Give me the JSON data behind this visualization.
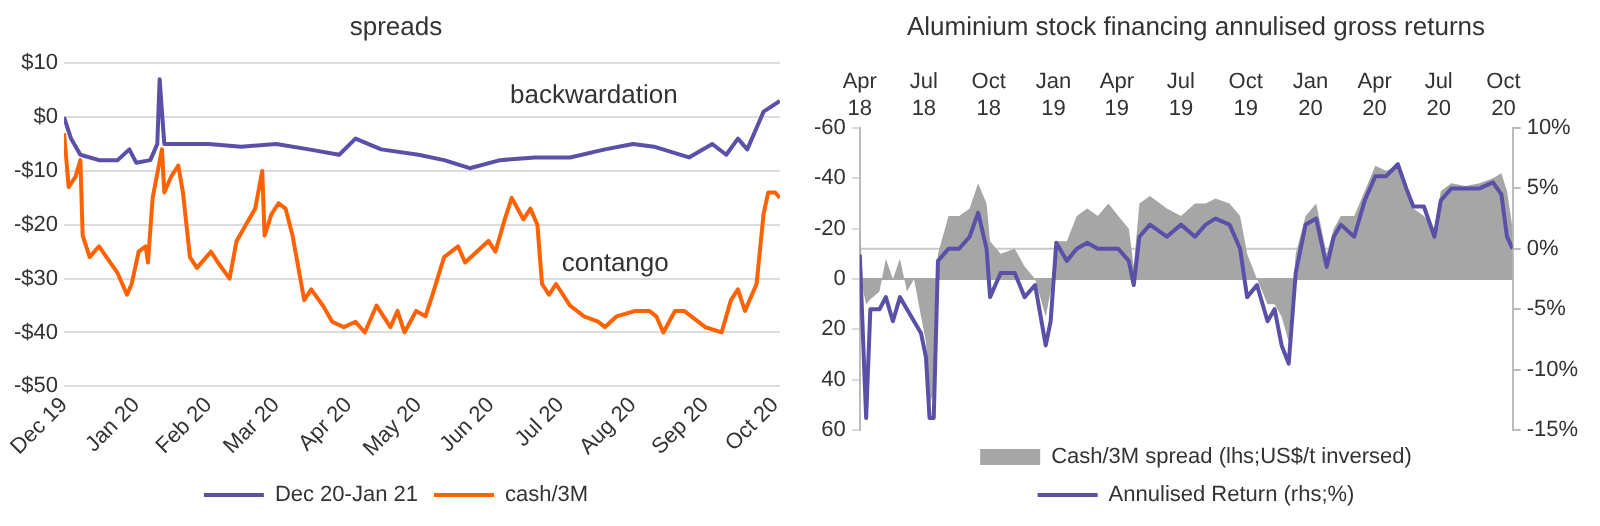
{
  "chart_data": [
    {
      "type": "line",
      "title": "spreads",
      "xlim": [
        "2019-12-01",
        "2020-10-03"
      ],
      "xticks": [
        {
          "value": "2019-12-01",
          "label": "Dec 19"
        },
        {
          "value": "2020-01-01",
          "label": "Jan 20"
        },
        {
          "value": "2020-02-01",
          "label": "Feb 20"
        },
        {
          "value": "2020-03-01",
          "label": "Mar 20"
        },
        {
          "value": "2020-04-01",
          "label": "Apr 20"
        },
        {
          "value": "2020-05-01",
          "label": "May 20"
        },
        {
          "value": "2020-06-01",
          "label": "Jun 20"
        },
        {
          "value": "2020-07-01",
          "label": "Jul 20"
        },
        {
          "value": "2020-08-01",
          "label": "Aug 20"
        },
        {
          "value": "2020-09-01",
          "label": "Sep 20"
        },
        {
          "value": "2020-10-01",
          "label": "Oct 20"
        }
      ],
      "ylim": [
        -50,
        10
      ],
      "yticks": [
        {
          "value": -50,
          "label": "-$50"
        },
        {
          "value": -40,
          "label": "-$40"
        },
        {
          "value": -30,
          "label": "-$30"
        },
        {
          "value": -20,
          "label": "-$20"
        },
        {
          "value": -10,
          "label": "-$10"
        },
        {
          "value": 0,
          "label": "$0"
        },
        {
          "value": 10,
          "label": "$10"
        }
      ],
      "grid": "y",
      "legend": "bottom",
      "marker": "none",
      "line_style": "solid",
      "annotations": [
        "backwardation",
        "contango"
      ],
      "series": [
        {
          "name": "Dec 20-Jan 21",
          "color": "#5a50a8",
          "x": [
            "2019-12-01",
            "2019-12-04",
            "2019-12-08",
            "2019-12-16",
            "2019-12-24",
            "2019-12-29",
            "2020-01-01",
            "2020-01-07",
            "2020-01-10",
            "2020-01-11",
            "2020-01-13",
            "2020-02-01",
            "2020-02-15",
            "2020-03-01",
            "2020-03-15",
            "2020-03-28",
            "2020-04-04",
            "2020-04-15",
            "2020-05-01",
            "2020-05-12",
            "2020-05-23",
            "2020-06-05",
            "2020-06-20",
            "2020-07-05",
            "2020-07-20",
            "2020-08-01",
            "2020-08-10",
            "2020-08-25",
            "2020-09-04",
            "2020-09-10",
            "2020-09-15",
            "2020-09-19",
            "2020-09-24",
            "2020-09-26",
            "2020-10-03"
          ],
          "values": [
            0,
            -4,
            -7,
            -8,
            -8,
            -6,
            -8.5,
            -8,
            -5,
            7,
            -5,
            -5,
            -5.5,
            -5,
            -6,
            -7,
            -4,
            -6,
            -7,
            -8,
            -9.5,
            -8,
            -7.5,
            -7.5,
            -6,
            -5,
            -5.5,
            -7.5,
            -5,
            -7,
            -4,
            -6,
            -1,
            1,
            3
          ]
        },
        {
          "name": "cash/3M",
          "color": "#ff6200",
          "x": [
            "2019-12-01",
            "2019-12-03",
            "2019-12-06",
            "2019-12-08",
            "2019-12-09",
            "2019-12-12",
            "2019-12-16",
            "2019-12-24",
            "2019-12-28",
            "2019-12-30",
            "2020-01-02",
            "2020-01-05",
            "2020-01-06",
            "2020-01-08",
            "2020-01-12",
            "2020-01-13",
            "2020-01-16",
            "2020-01-19",
            "2020-01-21",
            "2020-01-24",
            "2020-01-27",
            "2020-02-02",
            "2020-02-05",
            "2020-02-10",
            "2020-02-13",
            "2020-02-17",
            "2020-02-21",
            "2020-02-24",
            "2020-02-25",
            "2020-02-28",
            "2020-03-02",
            "2020-03-05",
            "2020-03-08",
            "2020-03-13",
            "2020-03-16",
            "2020-03-21",
            "2020-03-25",
            "2020-03-30",
            "2020-04-04",
            "2020-04-08",
            "2020-04-13",
            "2020-04-19",
            "2020-04-22",
            "2020-04-25",
            "2020-04-30",
            "2020-05-04",
            "2020-05-07",
            "2020-05-12",
            "2020-05-18",
            "2020-05-21",
            "2020-05-26",
            "2020-05-31",
            "2020-06-03",
            "2020-06-07",
            "2020-06-10",
            "2020-06-15",
            "2020-06-18",
            "2020-06-21",
            "2020-06-23",
            "2020-06-26",
            "2020-06-29",
            "2020-07-05",
            "2020-07-11",
            "2020-07-17",
            "2020-07-20",
            "2020-07-25",
            "2020-08-02",
            "2020-08-08",
            "2020-08-11",
            "2020-08-14",
            "2020-08-19",
            "2020-08-23",
            "2020-08-26",
            "2020-09-01",
            "2020-09-08",
            "2020-09-12",
            "2020-09-15",
            "2020-09-18",
            "2020-09-23",
            "2020-09-26",
            "2020-09-28",
            "2020-10-01",
            "2020-10-03"
          ],
          "values": [
            -3,
            -13,
            -11,
            -8,
            -22,
            -26,
            -24,
            -29,
            -33,
            -31,
            -25,
            -24,
            -27,
            -15,
            -6,
            -14,
            -11,
            -9,
            -14,
            -26,
            -28,
            -25,
            -27,
            -30,
            -23,
            -20,
            -17,
            -10,
            -22,
            -18,
            -16,
            -17,
            -22,
            -34,
            -32,
            -35,
            -38,
            -39,
            -38,
            -40,
            -35,
            -39,
            -36,
            -40,
            -36,
            -37,
            -33,
            -26,
            -24,
            -27,
            -25,
            -23,
            -25,
            -19,
            -15,
            -19,
            -17,
            -20,
            -31,
            -33,
            -31,
            -35,
            -37,
            -38,
            -39,
            -37,
            -36,
            -36,
            -37,
            -40,
            -36,
            -36,
            -37,
            -39,
            -40,
            -34,
            -32,
            -36,
            -31,
            -18,
            -14,
            -14,
            -15
          ]
        }
      ]
    },
    {
      "type": "line",
      "title": "Aluminium stock financing annulised gross returns",
      "xlim": [
        "2018-04-01",
        "2020-10-14"
      ],
      "xticks": [
        {
          "value": "2018-04-01",
          "label": "Apr 18"
        },
        {
          "value": "2018-07-01",
          "label": "Jul 18"
        },
        {
          "value": "2018-10-01",
          "label": "Oct 18"
        },
        {
          "value": "2019-01-01",
          "label": "Jan 19"
        },
        {
          "value": "2019-04-01",
          "label": "Apr 19"
        },
        {
          "value": "2019-07-01",
          "label": "Jul 19"
        },
        {
          "value": "2019-10-01",
          "label": "Oct 19"
        },
        {
          "value": "2020-01-01",
          "label": "Jan 20"
        },
        {
          "value": "2020-04-01",
          "label": "Apr 20"
        },
        {
          "value": "2020-07-01",
          "label": "Jul 20"
        },
        {
          "value": "2020-10-01",
          "label": "Oct 20"
        }
      ],
      "ylim": [
        60,
        -60
      ],
      "yticks": [
        60,
        40,
        20,
        0,
        -20,
        -40,
        -60
      ],
      "y2lim": [
        -15,
        10
      ],
      "y2ticks": [
        {
          "value": -15,
          "label": "-15%"
        },
        {
          "value": -10,
          "label": "-10%"
        },
        {
          "value": -5,
          "label": "-5%"
        },
        {
          "value": 0,
          "label": "0%"
        },
        {
          "value": 5,
          "label": "5%"
        },
        {
          "value": 10,
          "label": "10%"
        }
      ],
      "grid": false,
      "legend": "bottom",
      "marker": "none",
      "line_style": "solid",
      "ref_lines": [
        {
          "axis": "y",
          "value": 0,
          "color": "#a6a6a6"
        },
        {
          "axis": "y2",
          "value": 0,
          "color": "#c8c8c8"
        }
      ],
      "x": [
        "2018-04-01",
        "2018-04-06",
        "2018-04-10",
        "2018-04-16",
        "2018-04-29",
        "2018-05-08",
        "2018-05-18",
        "2018-05-28",
        "2018-06-07",
        "2018-06-17",
        "2018-06-27",
        "2018-07-04",
        "2018-07-09",
        "2018-07-15",
        "2018-07-21",
        "2018-08-05",
        "2018-08-20",
        "2018-09-04",
        "2018-09-16",
        "2018-09-28",
        "2018-10-03",
        "2018-10-18",
        "2018-11-07",
        "2018-11-21",
        "2018-12-06",
        "2018-12-21",
        "2018-12-28",
        "2019-01-05",
        "2019-01-20",
        "2019-02-03",
        "2019-02-18",
        "2019-03-05",
        "2019-03-20",
        "2019-04-03",
        "2019-04-18",
        "2019-04-25",
        "2019-05-03",
        "2019-05-18",
        "2019-06-11",
        "2019-07-01",
        "2019-07-21",
        "2019-08-05",
        "2019-08-19",
        "2019-09-08",
        "2019-09-23",
        "2019-10-03",
        "2019-10-17",
        "2019-11-01",
        "2019-11-11",
        "2019-11-21",
        "2019-12-01",
        "2019-12-11",
        "2019-12-25",
        "2020-01-09",
        "2020-01-24",
        "2020-02-03",
        "2020-02-13",
        "2020-03-03",
        "2020-03-18",
        "2020-04-02",
        "2020-04-17",
        "2020-05-04",
        "2020-05-16",
        "2020-05-26",
        "2020-06-10",
        "2020-06-25",
        "2020-07-04",
        "2020-07-19",
        "2020-08-08",
        "2020-08-28",
        "2020-09-16",
        "2020-09-28",
        "2020-10-06",
        "2020-10-14"
      ],
      "series": [
        {
          "name": "Cash/3M spread (lhs;US$/t inversed)",
          "type": "area",
          "color": "#a6a6a6",
          "values": [
            -22,
            5,
            10,
            8,
            5,
            -8,
            0,
            -8,
            5,
            0,
            15,
            25,
            50,
            45,
            -10,
            -25,
            -25,
            -28,
            -38,
            -30,
            -15,
            -10,
            -12,
            -5,
            0,
            15,
            5,
            -15,
            -15,
            -25,
            -28,
            -25,
            -30,
            -25,
            -20,
            -5,
            -30,
            -33,
            -28,
            -25,
            -30,
            -30,
            -32,
            -30,
            -25,
            -10,
            0,
            10,
            10,
            15,
            25,
            -10,
            -25,
            -30,
            -10,
            -20,
            -25,
            -25,
            -35,
            -45,
            -43,
            -45,
            -38,
            -28,
            -25,
            -20,
            -35,
            -38,
            -37,
            -38,
            -40,
            -42,
            -35,
            -20
          ]
        },
        {
          "name": "Annulised Return (rhs;%)",
          "type": "line",
          "axis": "y2",
          "color": "#5a50a8",
          "values": [
            -0.5,
            -8,
            -14,
            -5,
            -5,
            -4,
            -6,
            -4,
            -5,
            -6,
            -7,
            -9,
            -14,
            -14,
            -1,
            0,
            0,
            1,
            3,
            0,
            -4,
            -2,
            -2,
            -4,
            -3,
            -8,
            -6,
            0.5,
            -1,
            0,
            0.5,
            0,
            0,
            0,
            -1,
            -3,
            1,
            2,
            1,
            2,
            1,
            2,
            2.5,
            2,
            0,
            -4,
            -3,
            -6,
            -5,
            -8,
            -9.5,
            -2,
            2,
            2.5,
            -1.5,
            1,
            2,
            1,
            4,
            6,
            6,
            7,
            5,
            3.5,
            3.5,
            1,
            4,
            5,
            5,
            5,
            5.5,
            4.5,
            1,
            0
          ]
        }
      ]
    }
  ]
}
